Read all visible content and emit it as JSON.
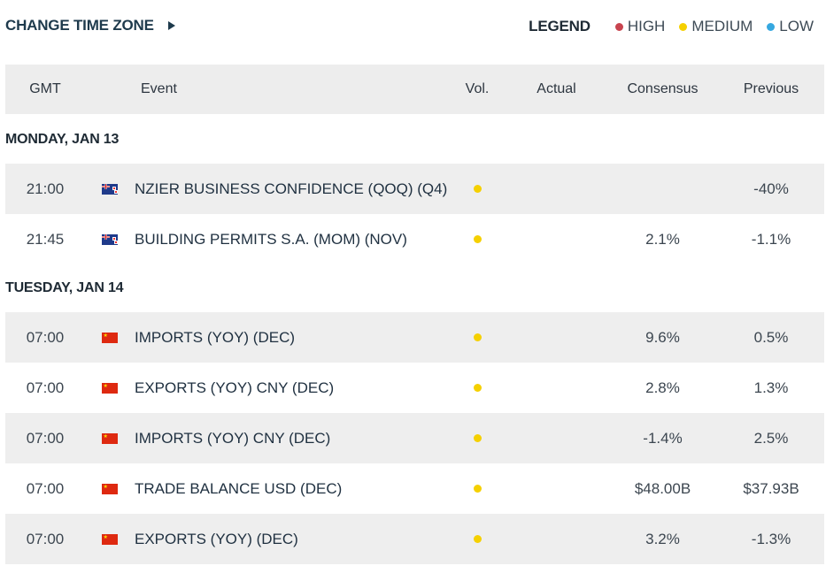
{
  "toolbar": {
    "change_tz_label": "CHANGE TIME ZONE"
  },
  "legend": {
    "title": "LEGEND",
    "items": [
      {
        "label": "HIGH",
        "color": "#c8444f"
      },
      {
        "label": "MEDIUM",
        "color": "#f5d000"
      },
      {
        "label": "LOW",
        "color": "#36a8e0"
      }
    ]
  },
  "table": {
    "headers": {
      "gmt": "GMT",
      "event": "Event",
      "vol": "Vol.",
      "actual": "Actual",
      "consensus": "Consensus",
      "previous": "Previous"
    }
  },
  "days": [
    {
      "label": "MONDAY, JAN 13",
      "events": [
        {
          "time": "21:00",
          "country": "nz-flag-icon",
          "event": "NZIER BUSINESS CONFIDENCE (QOQ) (Q4)",
          "volatility": "medium",
          "actual": "",
          "consensus": "",
          "previous": "-40%"
        },
        {
          "time": "21:45",
          "country": "nz-flag-icon",
          "event": "BUILDING PERMITS S.A. (MOM) (NOV)",
          "volatility": "medium",
          "actual": "",
          "consensus": "2.1%",
          "previous": "-1.1%"
        }
      ]
    },
    {
      "label": "TUESDAY, JAN 14",
      "events": [
        {
          "time": "07:00",
          "country": "cn-flag-icon",
          "event": "IMPORTS (YOY) (DEC)",
          "volatility": "medium",
          "actual": "",
          "consensus": "9.6%",
          "previous": "0.5%"
        },
        {
          "time": "07:00",
          "country": "cn-flag-icon",
          "event": "EXPORTS (YOY) CNY (DEC)",
          "volatility": "medium",
          "actual": "",
          "consensus": "2.8%",
          "previous": "1.3%"
        },
        {
          "time": "07:00",
          "country": "cn-flag-icon",
          "event": "IMPORTS (YOY) CNY (DEC)",
          "volatility": "medium",
          "actual": "",
          "consensus": "-1.4%",
          "previous": "2.5%"
        },
        {
          "time": "07:00",
          "country": "cn-flag-icon",
          "event": "TRADE BALANCE USD (DEC)",
          "volatility": "medium",
          "actual": "",
          "consensus": "$48.00B",
          "previous": "$37.93B"
        },
        {
          "time": "07:00",
          "country": "cn-flag-icon",
          "event": "EXPORTS (YOY) (DEC)",
          "volatility": "medium",
          "actual": "",
          "consensus": "3.2%",
          "previous": "-1.3%"
        }
      ]
    }
  ],
  "colors": {
    "medium_dot": "#f5d000",
    "header_bg": "#ededed",
    "row_shade": "#eeeeee"
  }
}
